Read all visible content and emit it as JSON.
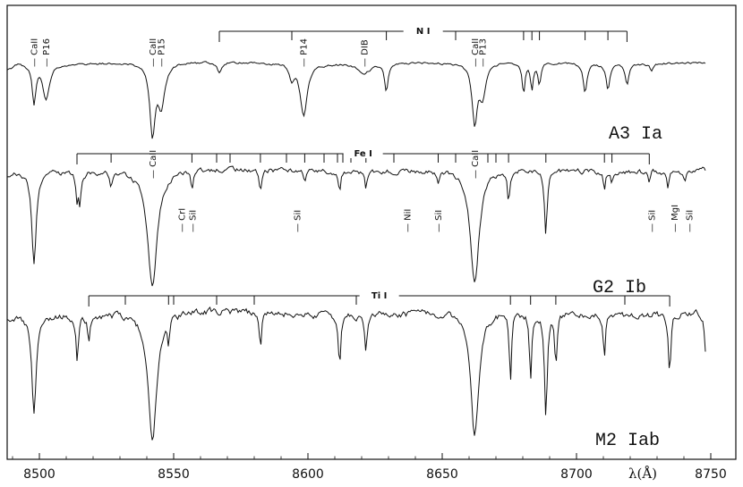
{
  "chart_data": {
    "type": "line",
    "title": "",
    "xlabel": "λ(Å)",
    "ylabel": "",
    "xlim": [
      8490,
      8755
    ],
    "xticks": [
      "8500",
      "8550",
      "8600",
      "8650",
      "8700",
      "8750"
    ],
    "series": [
      {
        "name": "A3 Ia",
        "label": "A3 Ia",
        "continuum": 0.0,
        "noise": 1.0,
        "lines": [
          {
            "x": 8498.0,
            "depth": 44,
            "w": 0.8
          },
          {
            "x": 8502.5,
            "depth": 40,
            "w": 1.5
          },
          {
            "x": 8542.1,
            "depth": 78,
            "w": 1.2
          },
          {
            "x": 8545.4,
            "depth": 48,
            "w": 1.5
          },
          {
            "x": 8567.0,
            "depth": 12,
            "w": 0.8
          },
          {
            "x": 8594.0,
            "depth": 16,
            "w": 0.9
          },
          {
            "x": 8598.4,
            "depth": 58,
            "w": 1.6
          },
          {
            "x": 8621.0,
            "depth": 10,
            "w": 3.0
          },
          {
            "x": 8629.2,
            "depth": 30,
            "w": 0.8
          },
          {
            "x": 8662.1,
            "depth": 66,
            "w": 1.2
          },
          {
            "x": 8665.0,
            "depth": 36,
            "w": 1.4
          },
          {
            "x": 8680.3,
            "depth": 35,
            "w": 0.6
          },
          {
            "x": 8683.4,
            "depth": 30,
            "w": 0.6
          },
          {
            "x": 8686.2,
            "depth": 24,
            "w": 0.6
          },
          {
            "x": 8703.2,
            "depth": 32,
            "w": 0.8
          },
          {
            "x": 8711.7,
            "depth": 30,
            "w": 0.8
          },
          {
            "x": 8718.8,
            "depth": 24,
            "w": 0.8
          },
          {
            "x": 8728.0,
            "depth": 8,
            "w": 0.8
          }
        ]
      },
      {
        "name": "G2 Ib",
        "label": "G2 Ib",
        "continuum": 0.0,
        "noise": 2.2,
        "lines": [
          {
            "x": 8498.0,
            "depth": 104,
            "w": 1.0
          },
          {
            "x": 8514.0,
            "depth": 30,
            "w": 0.5
          },
          {
            "x": 8515.1,
            "depth": 32,
            "w": 0.5
          },
          {
            "x": 8526.7,
            "depth": 16,
            "w": 0.5
          },
          {
            "x": 8542.1,
            "depth": 130,
            "w": 2.2
          },
          {
            "x": 8556.8,
            "depth": 22,
            "w": 0.5
          },
          {
            "x": 8582.3,
            "depth": 22,
            "w": 0.5
          },
          {
            "x": 8598.8,
            "depth": 14,
            "w": 0.5
          },
          {
            "x": 8611.8,
            "depth": 22,
            "w": 0.5
          },
          {
            "x": 8621.6,
            "depth": 18,
            "w": 0.5
          },
          {
            "x": 8648.5,
            "depth": 16,
            "w": 0.5
          },
          {
            "x": 8662.1,
            "depth": 126,
            "w": 2.0
          },
          {
            "x": 8674.7,
            "depth": 34,
            "w": 0.5
          },
          {
            "x": 8688.6,
            "depth": 70,
            "w": 0.6
          },
          {
            "x": 8710.4,
            "depth": 20,
            "w": 0.5
          },
          {
            "x": 8713.2,
            "depth": 14,
            "w": 0.5
          },
          {
            "x": 8727.1,
            "depth": 16,
            "w": 0.5
          },
          {
            "x": 8734.0,
            "depth": 18,
            "w": 0.5
          },
          {
            "x": 8740.3,
            "depth": 14,
            "w": 0.5
          }
        ]
      },
      {
        "name": "M2 Iab",
        "label": "M2 Iab",
        "continuum": 0.0,
        "noise": 3.0,
        "lines": [
          {
            "x": 8498.0,
            "depth": 110,
            "w": 1.0
          },
          {
            "x": 8514.1,
            "depth": 55,
            "w": 0.5
          },
          {
            "x": 8518.4,
            "depth": 30,
            "w": 0.5
          },
          {
            "x": 8542.1,
            "depth": 140,
            "w": 2.0
          },
          {
            "x": 8548.1,
            "depth": 30,
            "w": 0.5
          },
          {
            "x": 8582.3,
            "depth": 40,
            "w": 0.5
          },
          {
            "x": 8611.8,
            "depth": 60,
            "w": 0.5
          },
          {
            "x": 8621.6,
            "depth": 40,
            "w": 0.5
          },
          {
            "x": 8662.1,
            "depth": 140,
            "w": 1.8
          },
          {
            "x": 8675.4,
            "depth": 80,
            "w": 0.5
          },
          {
            "x": 8682.9,
            "depth": 72,
            "w": 0.5
          },
          {
            "x": 8688.6,
            "depth": 118,
            "w": 0.6
          },
          {
            "x": 8692.3,
            "depth": 60,
            "w": 0.5
          },
          {
            "x": 8710.4,
            "depth": 50,
            "w": 0.5
          },
          {
            "x": 8734.7,
            "depth": 70,
            "w": 0.5
          },
          {
            "x": 8748.0,
            "depth": 40,
            "w": 0.5
          }
        ]
      }
    ],
    "line_groups": [
      {
        "name": "N I",
        "x0": 8567.0,
        "x1": 8718.8,
        "ticks": [
          8594.0,
          8629.2,
          8655.0,
          8680.3,
          8683.4,
          8686.2,
          8703.2,
          8711.7
        ]
      },
      {
        "name": "Fe I",
        "x0": 8514.0,
        "x1": 8727.1,
        "ticks": [
          8526.7,
          8556.8,
          8566.0,
          8571.0,
          8582.3,
          8592.0,
          8598.8,
          8606.0,
          8611.0,
          8613.0,
          8616.0,
          8621.6,
          8632.0,
          8648.5,
          8655.0,
          8667.0,
          8670.0,
          8674.7,
          8688.6,
          8710.4,
          8713.2
        ]
      },
      {
        "name": "Ti I",
        "x0": 8518.4,
        "x1": 8734.7,
        "ticks": [
          8532.0,
          8548.1,
          8550.0,
          8566.0,
          8580.0,
          8618.0,
          8675.4,
          8682.9,
          8692.3,
          8718.0
        ]
      }
    ],
    "annotations": [
      {
        "panel": 0,
        "text": "CaII",
        "x": 8498.0
      },
      {
        "panel": 0,
        "text": "P16",
        "x": 8502.5
      },
      {
        "panel": 0,
        "text": "CaII",
        "x": 8542.1
      },
      {
        "panel": 0,
        "text": "P15",
        "x": 8545.4
      },
      {
        "panel": 0,
        "text": "P14",
        "x": 8598.4
      },
      {
        "panel": 0,
        "text": "DIB",
        "x": 8621.0
      },
      {
        "panel": 0,
        "text": "CaII",
        "x": 8662.1
      },
      {
        "panel": 0,
        "text": "P13",
        "x": 8665.0
      },
      {
        "panel": 1,
        "text": "CaII",
        "x": 8542.1
      },
      {
        "panel": 1,
        "text": "CaII",
        "x": 8662.1
      },
      {
        "panel": 1,
        "text": "CrI",
        "x": 8553.0,
        "below": true
      },
      {
        "panel": 1,
        "text": "SiI",
        "x": 8557.0,
        "below": true
      },
      {
        "panel": 1,
        "text": "SiI",
        "x": 8596.0,
        "below": true
      },
      {
        "panel": 1,
        "text": "NiI",
        "x": 8637.0,
        "below": true
      },
      {
        "panel": 1,
        "text": "SiI",
        "x": 8648.5,
        "below": true
      },
      {
        "panel": 1,
        "text": "SiI",
        "x": 8728.0,
        "below": true
      },
      {
        "panel": 1,
        "text": "MgI",
        "x": 8736.5,
        "below": true
      },
      {
        "panel": 1,
        "text": "SiI",
        "x": 8742.0,
        "below": true
      }
    ]
  }
}
